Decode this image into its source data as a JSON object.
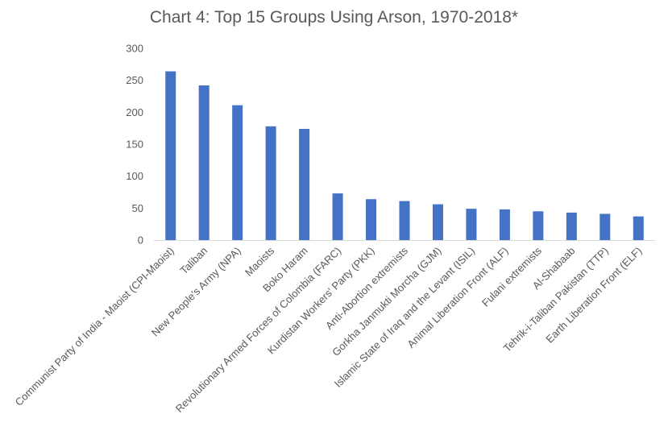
{
  "chart_data": {
    "type": "bar",
    "title": "Chart 4: Top 15 Groups Using Arson, 1970-2018*",
    "xlabel": "",
    "ylabel": "",
    "ylim": [
      0,
      300
    ],
    "yticks": [
      0,
      50,
      100,
      150,
      200,
      250,
      300
    ],
    "grid": false,
    "bar_color": "#4472C4",
    "categories": [
      "Communist Party of India - Maoist (CPI-Maoist)",
      "Taliban",
      "New People's Army (NPA)",
      "Maoists",
      "Boko Haram",
      "Revolutionary Armed Forces of Colombia (FARC)",
      "Kurdistan Workers' Party (PKK)",
      "Anti-Abortion extremists",
      "Gorkha Janmukti Morcha (GJM)",
      "Islamic State of Iraq and the Levant (ISIL)",
      "Animal Liberation Front (ALF)",
      "Fulani extremists",
      "Al-Shabaab",
      "Tehrik-i-Taliban Pakistan (TTP)",
      "Earth Liberation Front (ELF)"
    ],
    "values": [
      264,
      242,
      211,
      178,
      174,
      73,
      64,
      61,
      56,
      49,
      48,
      45,
      43,
      41,
      37
    ]
  }
}
